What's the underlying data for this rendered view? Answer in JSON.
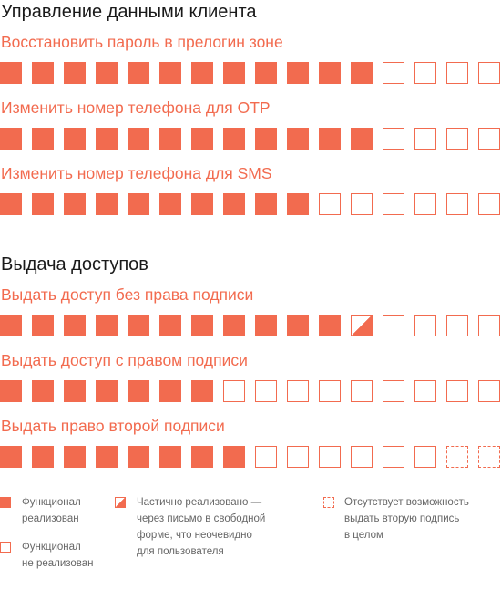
{
  "colors": {
    "accent": "#f26b4f",
    "title": "#1a1a1a",
    "legend_text": "#666666"
  },
  "sections": [
    {
      "title": "Управление данными клиента",
      "items": [
        {
          "label": "Восстановить пароль в прелогин зоне",
          "cells": [
            "full",
            "full",
            "full",
            "full",
            "full",
            "full",
            "full",
            "full",
            "full",
            "full",
            "full",
            "full",
            "empty",
            "empty",
            "empty",
            "empty"
          ]
        },
        {
          "label": "Изменить номер телефона для OTP",
          "cells": [
            "full",
            "full",
            "full",
            "full",
            "full",
            "full",
            "full",
            "full",
            "full",
            "full",
            "full",
            "full",
            "empty",
            "empty",
            "empty",
            "empty"
          ]
        },
        {
          "label": "Изменить номер телефона для SMS",
          "cells": [
            "full",
            "full",
            "full",
            "full",
            "full",
            "full",
            "full",
            "full",
            "full",
            "full",
            "empty",
            "empty",
            "empty",
            "empty",
            "empty",
            "empty"
          ]
        }
      ]
    },
    {
      "title": "Выдача доступов",
      "items": [
        {
          "label": "Выдать доступ без права подписи",
          "cells": [
            "full",
            "full",
            "full",
            "full",
            "full",
            "full",
            "full",
            "full",
            "full",
            "full",
            "full",
            "partial",
            "empty",
            "empty",
            "empty",
            "empty"
          ]
        },
        {
          "label": "Выдать доступ с правом подписи",
          "cells": [
            "full",
            "full",
            "full",
            "full",
            "full",
            "full",
            "full",
            "empty",
            "empty",
            "empty",
            "empty",
            "empty",
            "empty",
            "empty",
            "empty",
            "empty"
          ]
        },
        {
          "label": "Выдать право второй подписи",
          "cells": [
            "full",
            "full",
            "full",
            "full",
            "full",
            "full",
            "full",
            "full",
            "empty",
            "empty",
            "empty",
            "empty",
            "empty",
            "empty",
            "absent",
            "absent"
          ]
        }
      ]
    }
  ],
  "legend": {
    "implemented": "Функционал\nреализован",
    "not_implemented": "Функционал\nне реализован",
    "partial": "Частично реализовано —\nчерез письмо в свободной\nформе, что неочевидно\nдля пользователя",
    "absent": "Отсутствует возможность\nвыдать вторую подпись\nв целом"
  }
}
